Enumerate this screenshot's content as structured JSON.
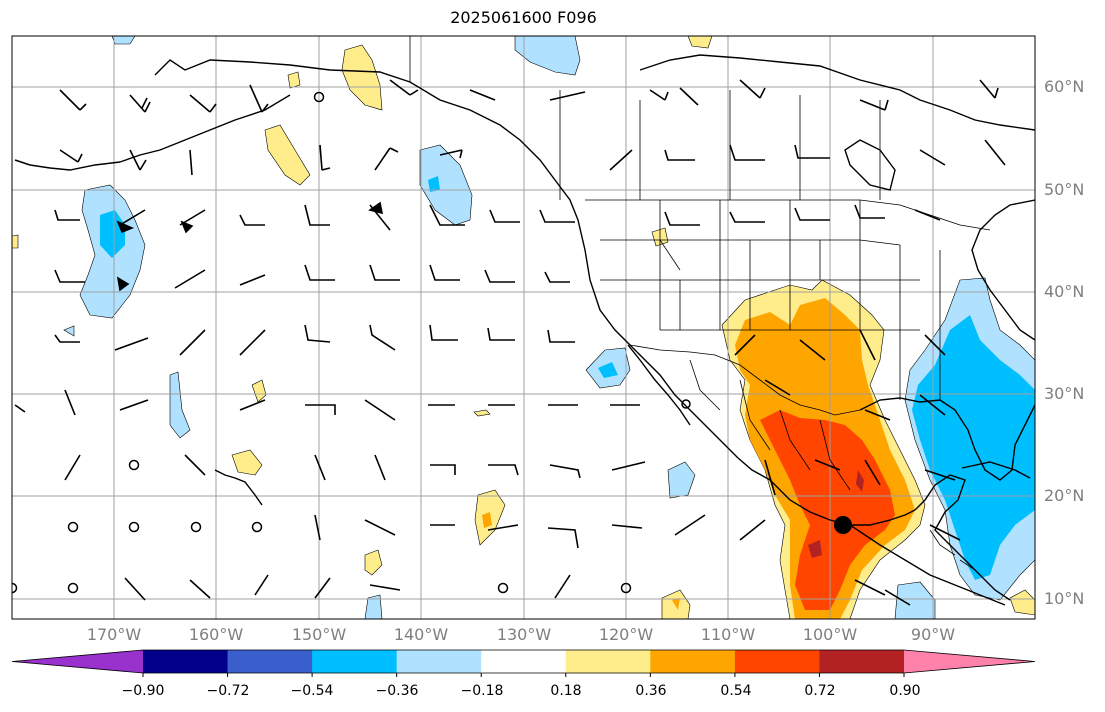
{
  "title": "2025061600 F096",
  "map": {
    "projection": "plate-carree",
    "lon_range": [
      -180,
      -80
    ],
    "lat_range": [
      8,
      65
    ],
    "gridlines": true,
    "features": [
      "coastlines",
      "country-borders",
      "us-state-borders",
      "wind-barbs",
      "filled-contours"
    ],
    "wind_barbs_color": "#000000",
    "colorbar_labels": [
      "−0.90",
      "−0.72",
      "−0.54",
      "−0.36",
      "−0.18",
      "0.18",
      "0.36",
      "0.54",
      "0.72",
      "0.90"
    ],
    "colorbar_colors": [
      "#9932cc",
      "#00008b",
      "#3a5fcd",
      "#00bfff",
      "#b0e2ff",
      "#ffffff",
      "#ffec8b",
      "#ffa500",
      "#ff4500",
      "#b22222",
      "#ff82ab"
    ],
    "lat_labels": [
      "60°N",
      "50°N",
      "40°N",
      "30°N",
      "20°N",
      "10°N"
    ],
    "lon_labels": [
      "170°W",
      "160°W",
      "150°W",
      "140°W",
      "130°W",
      "120°W",
      "110°W",
      "100°W",
      "90°W"
    ]
  }
}
